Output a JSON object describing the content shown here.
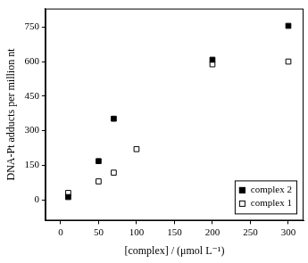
{
  "chart_data": {
    "type": "scatter",
    "x_label": "[complex] / (μmol L⁻¹)",
    "y_label": "DNA-Pt adducts per million nt",
    "series": [
      {
        "name": "complex 2",
        "color": "#000000",
        "marker": "filled_square",
        "x": [
          10,
          50,
          70,
          200,
          300
        ],
        "values": [
          12,
          168,
          352,
          608,
          755
        ]
      },
      {
        "name": "complex 1",
        "color": "#000000",
        "marker": "open_square",
        "x": [
          10,
          50,
          70,
          100,
          200,
          300
        ],
        "values": [
          30,
          80,
          118,
          220,
          588,
          600
        ]
      }
    ],
    "xlim": [
      -20,
      320
    ],
    "xticks": [
      0,
      50,
      100,
      150,
      200,
      250,
      300
    ],
    "ylim": [
      -90,
      830
    ],
    "yticks": [
      0,
      150,
      300,
      450,
      600,
      750
    ],
    "grid": false,
    "legend": "lower right"
  }
}
